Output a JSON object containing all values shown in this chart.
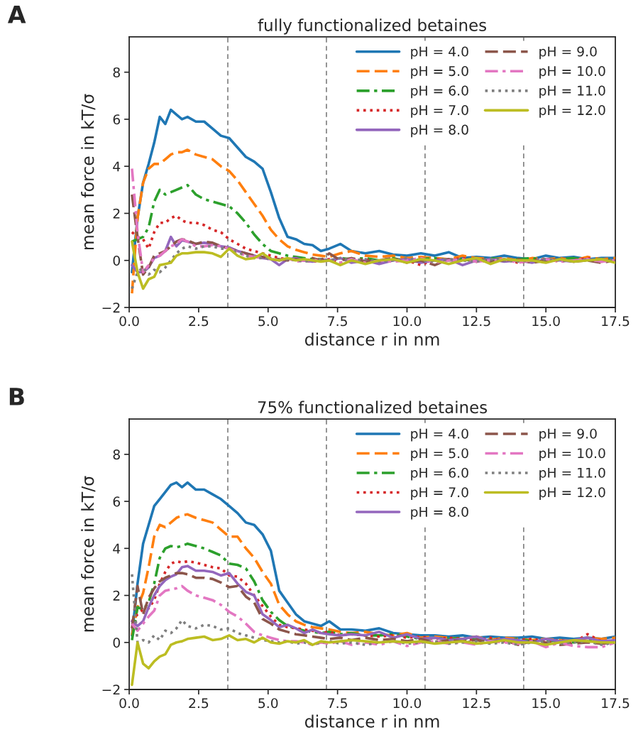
{
  "chart_data": [
    {
      "type": "line",
      "title": "fully functionalized betaines",
      "xlabel": "distance r in nm",
      "ylabel": "mean force in kT/σ",
      "annotations": [
        "A"
      ],
      "x": [
        0.1,
        0.3,
        0.5,
        0.7,
        0.9,
        1.1,
        1.3,
        1.5,
        1.7,
        1.9,
        2.1,
        2.4,
        2.7,
        3.0,
        3.3,
        3.6,
        3.9,
        4.2,
        4.5,
        4.8,
        5.1,
        5.4,
        5.7,
        6.0,
        6.3,
        6.6,
        6.9,
        7.2,
        7.6,
        8.0,
        8.5,
        9.0,
        9.5,
        10,
        10.5,
        11,
        11.5,
        12,
        12.5,
        13,
        13.5,
        14,
        14.5,
        15,
        15.5,
        16,
        16.5,
        17,
        17.5
      ],
      "xlim": [
        0,
        17.5
      ],
      "xticks": [
        {
          "value": 0,
          "label": "0.0"
        },
        {
          "value": 2.5,
          "label": "2.5"
        },
        {
          "value": 5,
          "label": "5.0"
        },
        {
          "value": 7.5,
          "label": "7.5"
        },
        {
          "value": 10,
          "label": "10.0"
        },
        {
          "value": 12.5,
          "label": "12.5"
        },
        {
          "value": 15,
          "label": "15.0"
        },
        {
          "value": 17.5,
          "label": "17.5"
        }
      ],
      "ylim": [
        -2,
        9.5
      ],
      "yticks": [
        -2,
        0,
        2,
        4,
        6,
        8
      ],
      "grid": false,
      "legend": "top right",
      "ref_lines": [
        {
          "axis": "x",
          "value": 3.55,
          "color": "#808080",
          "line_style": "dashed"
        },
        {
          "axis": "x",
          "value": 7.1,
          "color": "#808080",
          "line_style": "dashed"
        },
        {
          "axis": "x",
          "value": 10.65,
          "color": "#808080",
          "line_style": "dashed"
        },
        {
          "axis": "x",
          "value": 14.2,
          "color": "#808080",
          "line_style": "dashed"
        }
      ],
      "series": [
        {
          "name": "pH = 4.0",
          "color": "#1f77b4",
          "line_style": "solid",
          "values": [
            -0.5,
            1.8,
            3.3,
            4.1,
            5.0,
            6.1,
            5.8,
            6.4,
            6.2,
            6.0,
            6.1,
            5.9,
            5.9,
            5.6,
            5.3,
            5.2,
            4.8,
            4.4,
            4.2,
            3.9,
            2.9,
            1.8,
            1.0,
            0.9,
            0.7,
            0.65,
            0.4,
            0.5,
            0.7,
            0.4,
            0.3,
            0.4,
            0.25,
            0.2,
            0.3,
            0.2,
            0.35,
            0.1,
            0.15,
            0.1,
            0.2,
            0.1,
            0.05,
            0.2,
            0.1,
            0.15,
            0.05,
            0.1,
            0.1
          ]
        },
        {
          "name": "pH = 5.0",
          "color": "#ff7f0e",
          "line_style": "dashed",
          "values": [
            -1.4,
            1.8,
            3.3,
            3.9,
            4.1,
            4.1,
            4.3,
            4.5,
            4.6,
            4.6,
            4.7,
            4.5,
            4.4,
            4.3,
            4.0,
            3.8,
            3.4,
            2.9,
            2.4,
            1.9,
            1.3,
            0.9,
            0.6,
            0.45,
            0.35,
            0.25,
            0.2,
            0.15,
            0.3,
            0.4,
            0.2,
            0.15,
            0.2,
            0.1,
            0.15,
            0.1,
            0.05,
            0.2,
            0.1,
            0.05,
            0.1,
            0.0,
            0.1,
            0.05,
            0.1,
            0.0,
            0.15,
            0.05,
            0.1
          ]
        },
        {
          "name": "pH = 6.0",
          "color": "#2ca02c",
          "line_style": "dashdot",
          "values": [
            0.8,
            0.9,
            1.0,
            1.4,
            2.5,
            3.0,
            2.8,
            2.9,
            3.0,
            3.1,
            3.2,
            2.8,
            2.6,
            2.5,
            2.4,
            2.3,
            2.0,
            1.6,
            1.1,
            0.7,
            0.4,
            0.3,
            0.2,
            0.15,
            0.1,
            0.05,
            0.05,
            0.0,
            0.1,
            0.05,
            0.1,
            0.0,
            0.1,
            -0.05,
            0.05,
            0.1,
            0.0,
            0.05,
            -0.05,
            0.1,
            0.0,
            0.05,
            0.1,
            0.0,
            0.05,
            0.1,
            0.0,
            0.05,
            0.0
          ]
        },
        {
          "name": "pH = 7.0",
          "color": "#d62728",
          "line_style": "dotted",
          "values": [
            1.2,
            1.0,
            0.9,
            0.5,
            1.2,
            1.6,
            1.6,
            1.8,
            1.9,
            1.7,
            1.6,
            1.6,
            1.5,
            1.3,
            1.2,
            0.9,
            0.7,
            0.5,
            0.4,
            0.3,
            0.2,
            0.1,
            0.05,
            0.1,
            0.0,
            -0.05,
            0.0,
            0.05,
            -0.1,
            0.0,
            0.05,
            -0.1,
            0.05,
            0.0,
            -0.2,
            0.05,
            0.0,
            0.1,
            -0.05,
            0.0,
            0.05,
            -0.1,
            0.0,
            0.05,
            -0.05,
            0.0,
            0.1,
            -0.05,
            0.0
          ]
        },
        {
          "name": "pH = 8.0",
          "color": "#9467bd",
          "line_style": "solid",
          "values": [
            -0.2,
            -0.5,
            -0.5,
            -0.3,
            0.1,
            0.2,
            0.4,
            1.0,
            0.6,
            0.85,
            0.8,
            0.7,
            0.75,
            0.7,
            0.6,
            0.55,
            0.4,
            0.3,
            0.2,
            0.1,
            0.05,
            -0.2,
            0.05,
            0.1,
            0.0,
            -0.05,
            0.05,
            0.0,
            0.1,
            -0.1,
            0.0,
            -0.15,
            0.0,
            0.05,
            -0.1,
            0.0,
            0.05,
            -0.2,
            0.0,
            0.05,
            -0.05,
            0.0,
            -0.1,
            0.05,
            0.0,
            -0.05,
            0.05,
            0.0,
            -0.05
          ]
        },
        {
          "name": "pH = 9.0",
          "color": "#8c564b",
          "line_style": "dashed",
          "values": [
            2.8,
            1.0,
            -0.6,
            -0.3,
            0.2,
            0.3,
            0.4,
            0.6,
            0.8,
            0.9,
            0.85,
            0.7,
            0.8,
            0.75,
            0.6,
            0.5,
            0.4,
            0.3,
            0.2,
            0.15,
            0.1,
            0.05,
            0.0,
            0.05,
            0.0,
            0.1,
            0.0,
            0.3,
            0.0,
            0.1,
            -0.05,
            0.0,
            0.1,
            -0.1,
            0.0,
            -0.2,
            0.05,
            0.0,
            0.1,
            -0.05,
            0.0,
            0.05,
            -0.1,
            0.0,
            0.05,
            -0.05,
            0.0,
            -0.1,
            0.0
          ]
        },
        {
          "name": "pH = 10.0",
          "color": "#e377c2",
          "line_style": "dashdot",
          "values": [
            3.9,
            1.2,
            -0.5,
            -0.2,
            0.1,
            0.2,
            0.4,
            0.6,
            0.7,
            0.9,
            0.8,
            0.6,
            0.6,
            0.65,
            0.6,
            0.5,
            0.35,
            0.2,
            0.15,
            0.1,
            0.05,
            0.0,
            0.1,
            -0.05,
            0.0,
            0.05,
            -0.05,
            0.0,
            -0.1,
            0.05,
            -0.1,
            0.0,
            -0.05,
            0.0,
            0.1,
            -0.1,
            0.0,
            0.05,
            -0.05,
            0.0,
            0.05,
            -0.1,
            0.0,
            0.05,
            -0.05,
            0.0,
            0.05,
            -0.05,
            0.0
          ]
        },
        {
          "name": "pH = 11.0",
          "color": "#7f7f7f",
          "line_style": "dotted",
          "values": [
            -1.2,
            -0.5,
            -0.3,
            -0.6,
            -0.4,
            -0.5,
            -0.3,
            0.0,
            0.3,
            0.5,
            0.6,
            0.5,
            0.6,
            0.6,
            0.5,
            0.5,
            0.35,
            0.2,
            0.1,
            0.1,
            0.05,
            0.0,
            0.05,
            0.0,
            -0.05,
            0.0,
            0.05,
            0.0,
            0.1,
            0.0,
            0.05,
            -0.05,
            0.0,
            0.1,
            0.0,
            -0.05,
            0.05,
            0.0,
            -0.05,
            0.05,
            0.0,
            -0.05,
            0.0,
            0.05,
            0.0,
            -0.05,
            0.0,
            0.05,
            0.0
          ]
        },
        {
          "name": "pH = 12.0",
          "color": "#bcbd22",
          "line_style": "solid",
          "values": [
            0.8,
            -0.5,
            -1.2,
            -0.8,
            -0.7,
            -0.2,
            -0.15,
            -0.1,
            0.2,
            0.3,
            0.3,
            0.35,
            0.35,
            0.3,
            0.15,
            0.5,
            0.2,
            0.05,
            0.1,
            0.3,
            0.05,
            0.0,
            0.1,
            0.0,
            0.05,
            0.0,
            -0.05,
            0.0,
            -0.2,
            0.0,
            -0.15,
            0.0,
            0.05,
            -0.1,
            0.05,
            0.0,
            -0.15,
            0.0,
            0.1,
            -0.15,
            0.05,
            0.0,
            0.0,
            -0.1,
            0.05,
            -0.05,
            0.0,
            0.05,
            -0.1
          ]
        }
      ]
    },
    {
      "type": "line",
      "title": "75% functionalized betaines",
      "xlabel": "distance r in nm",
      "ylabel": "mean force in kT/σ",
      "annotations": [
        "B"
      ],
      "x": [
        0.1,
        0.3,
        0.5,
        0.7,
        0.9,
        1.1,
        1.3,
        1.5,
        1.7,
        1.9,
        2.1,
        2.4,
        2.7,
        3.0,
        3.3,
        3.6,
        3.9,
        4.2,
        4.5,
        4.8,
        5.1,
        5.4,
        5.7,
        6.0,
        6.3,
        6.6,
        6.9,
        7.2,
        7.6,
        8.0,
        8.5,
        9.0,
        9.5,
        10,
        10.5,
        11,
        11.5,
        12,
        12.5,
        13,
        13.5,
        14,
        14.5,
        15,
        15.5,
        16,
        16.5,
        17,
        17.5
      ],
      "xlim": [
        0,
        17.5
      ],
      "xticks": [
        {
          "value": 0,
          "label": "0.0"
        },
        {
          "value": 2.5,
          "label": "2.5"
        },
        {
          "value": 5,
          "label": "5.0"
        },
        {
          "value": 7.5,
          "label": "7.5"
        },
        {
          "value": 10,
          "label": "10.0"
        },
        {
          "value": 12.5,
          "label": "12.5"
        },
        {
          "value": 15,
          "label": "15.0"
        },
        {
          "value": 17.5,
          "label": "17.5"
        }
      ],
      "ylim": [
        -2,
        9.5
      ],
      "yticks": [
        -2,
        0,
        2,
        4,
        6,
        8
      ],
      "grid": false,
      "legend": "top right",
      "ref_lines": [
        {
          "axis": "x",
          "value": 3.55,
          "color": "#808080",
          "line_style": "dashed"
        },
        {
          "axis": "x",
          "value": 7.1,
          "color": "#808080",
          "line_style": "dashed"
        },
        {
          "axis": "x",
          "value": 10.65,
          "color": "#808080",
          "line_style": "dashed"
        },
        {
          "axis": "x",
          "value": 14.2,
          "color": "#808080",
          "line_style": "dashed"
        }
      ],
      "series": [
        {
          "name": "pH = 4.0",
          "color": "#1f77b4",
          "line_style": "solid",
          "values": [
            0.3,
            2.5,
            4.2,
            5.0,
            5.8,
            6.1,
            6.4,
            6.7,
            6.8,
            6.6,
            6.8,
            6.5,
            6.5,
            6.3,
            6.1,
            5.8,
            5.5,
            5.1,
            5.0,
            4.6,
            3.9,
            2.2,
            1.7,
            1.2,
            0.9,
            0.8,
            0.7,
            0.9,
            0.55,
            0.55,
            0.5,
            0.6,
            0.4,
            0.35,
            0.3,
            0.3,
            0.25,
            0.3,
            0.2,
            0.25,
            0.2,
            0.2,
            0.25,
            0.15,
            0.2,
            0.15,
            0.2,
            0.15,
            0.25
          ]
        },
        {
          "name": "pH = 5.0",
          "color": "#ff7f0e",
          "line_style": "dashed",
          "values": [
            0.3,
            1.5,
            2.1,
            3.2,
            4.5,
            5.0,
            4.9,
            5.1,
            5.3,
            5.4,
            5.45,
            5.3,
            5.2,
            5.1,
            4.8,
            4.5,
            4.5,
            4.0,
            3.6,
            3.0,
            2.5,
            1.6,
            1.2,
            0.9,
            0.75,
            0.65,
            0.6,
            0.55,
            0.45,
            0.4,
            0.45,
            0.35,
            0.3,
            0.4,
            0.2,
            0.25,
            0.2,
            0.15,
            0.25,
            0.1,
            0.2,
            0.15,
            0.1,
            0.15,
            0.1,
            0.05,
            0.2,
            0.15,
            0.2
          ]
        },
        {
          "name": "pH = 6.0",
          "color": "#2ca02c",
          "line_style": "dashdot",
          "values": [
            0.1,
            1.5,
            1.4,
            1.7,
            2.5,
            3.6,
            4.0,
            4.1,
            4.05,
            4.1,
            4.2,
            4.1,
            4.0,
            3.85,
            3.7,
            3.35,
            3.3,
            3.15,
            2.6,
            1.8,
            1.3,
            0.95,
            0.7,
            0.6,
            0.5,
            0.45,
            0.4,
            0.45,
            0.35,
            0.4,
            0.3,
            0.3,
            0.35,
            0.25,
            0.15,
            0.2,
            0.15,
            0.2,
            0.1,
            0.15,
            0.1,
            0.15,
            0.05,
            0.1,
            0.05,
            0.0,
            0.1,
            0.05,
            0.0
          ]
        },
        {
          "name": "pH = 7.0",
          "color": "#d62728",
          "line_style": "dotted",
          "values": [
            0.9,
            1.2,
            1.4,
            1.45,
            1.8,
            2.5,
            3.0,
            3.35,
            3.45,
            3.4,
            3.45,
            3.4,
            3.3,
            3.2,
            3.15,
            2.85,
            2.8,
            2.5,
            2.0,
            1.55,
            1.1,
            0.75,
            0.65,
            0.6,
            0.55,
            0.5,
            0.4,
            0.45,
            0.3,
            0.35,
            0.3,
            0.25,
            0.3,
            0.2,
            0.25,
            0.15,
            0.2,
            0.15,
            0.1,
            0.2,
            0.05,
            0.1,
            0.15,
            0.05,
            0.1,
            0.0,
            0.35,
            0.05,
            0.05
          ]
        },
        {
          "name": "pH = 8.0",
          "color": "#9467bd",
          "line_style": "solid",
          "values": [
            0.9,
            0.7,
            0.9,
            1.5,
            2.0,
            2.4,
            2.65,
            2.8,
            2.9,
            3.2,
            3.25,
            3.05,
            3.05,
            3.0,
            2.85,
            2.95,
            2.5,
            2.15,
            2.0,
            1.2,
            0.95,
            0.65,
            0.75,
            0.6,
            0.4,
            0.55,
            0.4,
            0.35,
            0.3,
            0.35,
            0.3,
            0.45,
            0.2,
            0.35,
            0.15,
            0.2,
            0.1,
            0.15,
            0.25,
            0.05,
            0.15,
            0.1,
            0.0,
            0.15,
            0.05,
            0.1,
            0.2,
            0.05,
            0.1
          ]
        },
        {
          "name": "pH = 9.0",
          "color": "#8c564b",
          "line_style": "dashed",
          "values": [
            0.6,
            2.4,
            1.2,
            1.9,
            2.3,
            2.6,
            2.75,
            2.85,
            2.95,
            2.95,
            2.9,
            2.75,
            2.75,
            2.7,
            2.55,
            2.35,
            2.4,
            1.95,
            1.7,
            1.0,
            0.8,
            0.55,
            0.45,
            0.35,
            0.3,
            0.25,
            0.2,
            0.15,
            0.2,
            0.1,
            0.2,
            0.1,
            0.15,
            0.05,
            0.15,
            0.0,
            0.1,
            0.05,
            0.1,
            0.0,
            0.1,
            -0.1,
            0.05,
            0.0,
            -0.1,
            -0.05,
            0.0,
            -0.05,
            0.0
          ]
        },
        {
          "name": "pH = 10.0",
          "color": "#e377c2",
          "line_style": "dashdot",
          "values": [
            0.8,
            0.5,
            0.8,
            1.1,
            1.35,
            2.0,
            2.2,
            2.25,
            2.3,
            2.4,
            2.2,
            2.0,
            1.9,
            1.8,
            1.6,
            1.3,
            1.1,
            0.8,
            0.45,
            0.3,
            0.2,
            0.1,
            0.05,
            0.05,
            0.0,
            -0.1,
            0.0,
            -0.05,
            0.05,
            -0.1,
            0.0,
            -0.1,
            0.05,
            -0.15,
            0.0,
            0.05,
            -0.05,
            0.0,
            -0.1,
            0.05,
            0.0,
            -0.05,
            0.05,
            -0.2,
            0.0,
            -0.15,
            -0.2,
            -0.2,
            0.0
          ]
        },
        {
          "name": "pH = 11.0",
          "color": "#7f7f7f",
          "line_style": "dotted",
          "values": [
            2.9,
            0.0,
            0.1,
            0.0,
            0.3,
            0.1,
            0.5,
            0.4,
            0.6,
            0.95,
            0.7,
            0.6,
            0.75,
            0.7,
            0.55,
            0.6,
            0.4,
            0.3,
            0.2,
            0.1,
            0.05,
            0.0,
            0.05,
            -0.05,
            0.0,
            -0.1,
            0.0,
            0.05,
            -0.05,
            0.0,
            -0.1,
            0.0,
            0.05,
            -0.05,
            0.0,
            0.05,
            -0.05,
            0.0,
            0.05,
            -0.05,
            0.0,
            -0.1,
            0.0,
            0.05,
            -0.05,
            0.0,
            0.05,
            -0.1,
            0.0
          ]
        },
        {
          "name": "pH = 12.0",
          "color": "#bcbd22",
          "line_style": "solid",
          "values": [
            -1.8,
            0.0,
            -0.9,
            -1.1,
            -0.8,
            -0.6,
            -0.5,
            -0.1,
            0.0,
            0.05,
            0.15,
            0.2,
            0.25,
            0.1,
            0.15,
            0.3,
            0.1,
            0.15,
            0.0,
            0.2,
            0.0,
            -0.05,
            0.05,
            0.0,
            0.1,
            -0.1,
            0.05,
            0.0,
            0.05,
            0.1,
            0.05,
            0.0,
            0.05,
            0.0,
            0.05,
            -0.05,
            0.0,
            0.05,
            -0.05,
            0.0,
            0.1,
            0.0,
            0.0,
            -0.1,
            0.0,
            0.1,
            0.05,
            0.0,
            0.0
          ]
        }
      ]
    }
  ]
}
